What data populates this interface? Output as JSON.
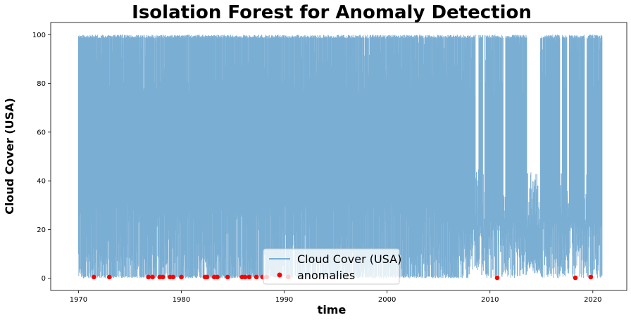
{
  "chart_data": {
    "type": "line",
    "title": "Isolation Forest for Anomaly Detection",
    "xlabel": "time",
    "ylabel": "Cloud Cover (USA)",
    "xlim": [
      1967.3,
      2023.3
    ],
    "ylim": [
      -5,
      105
    ],
    "x_ticks": [
      1970,
      1980,
      1990,
      2000,
      2010,
      2020
    ],
    "y_ticks": [
      0,
      20,
      40,
      60,
      80,
      100
    ],
    "grid": false,
    "legend_position": "bottom-center",
    "series": [
      {
        "name": "Cloud Cover (USA)",
        "kind": "line",
        "color": "#7aaed3",
        "x_range": [
          1970.0,
          2020.9
        ],
        "range": [
          0,
          100
        ],
        "description_of_density": "dense daily values oscillating between 0 and 100"
      },
      {
        "name": "anomalies",
        "kind": "scatter",
        "color": "#ff0000",
        "x": [
          1971.5,
          1973.0,
          1976.8,
          1977.2,
          1977.9,
          1978.2,
          1978.9,
          1979.2,
          1980.0,
          1982.3,
          1982.5,
          1983.2,
          1983.5,
          1984.5,
          1985.9,
          1986.2,
          1986.6,
          1987.3,
          1987.9,
          1988.3,
          1990.4,
          2010.7,
          2018.3,
          2019.8
        ],
        "y": [
          0.5,
          0.5,
          0.5,
          0.5,
          0.5,
          0.5,
          0.5,
          0.5,
          0.5,
          0.5,
          0.5,
          0.5,
          0.5,
          0.5,
          0.5,
          0.5,
          0.5,
          0.5,
          0.5,
          0.5,
          0.5,
          0.2,
          0.2,
          0.5
        ]
      }
    ]
  }
}
